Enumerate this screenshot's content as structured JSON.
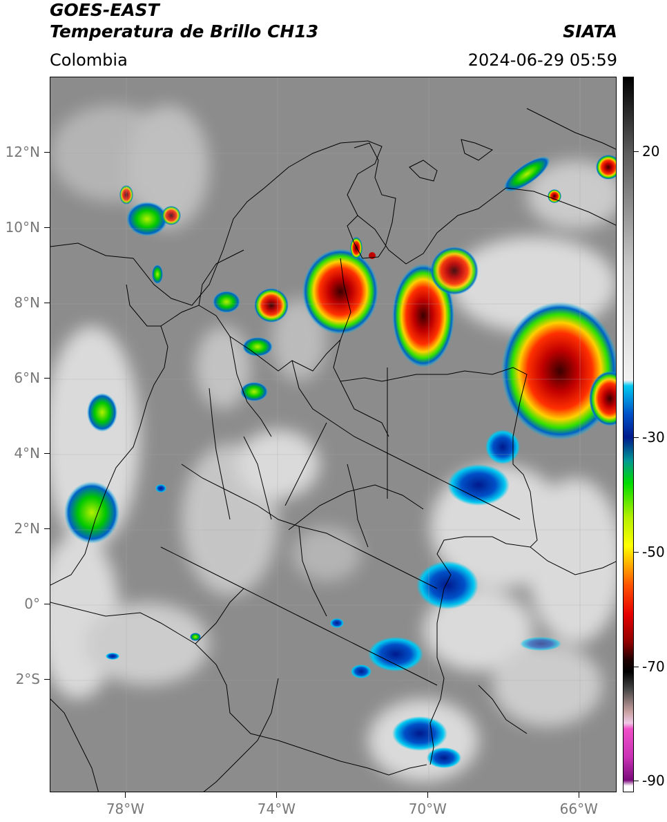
{
  "header": {
    "satellite": "GOES-EAST",
    "product": "Temperatura de Brillo CH13",
    "organization": "SIATA",
    "region": "Colombia",
    "datetime": "2024-06-29 05:59"
  },
  "map": {
    "extent": {
      "lon_min": -80,
      "lon_max": -65,
      "lat_min": -5,
      "lat_max": 14
    },
    "lat_ticks": [
      {
        "lat": 12,
        "label": "12°N"
      },
      {
        "lat": 10,
        "label": "10°N"
      },
      {
        "lat": 8,
        "label": "8°N"
      },
      {
        "lat": 6,
        "label": "6°N"
      },
      {
        "lat": 4,
        "label": "4°N"
      },
      {
        "lat": 2,
        "label": "2°N"
      },
      {
        "lat": 0,
        "label": "0°"
      },
      {
        "lat": -2,
        "label": "2°S"
      }
    ],
    "lon_ticks": [
      {
        "lon": -78,
        "label": "78°W"
      },
      {
        "lon": -74,
        "label": "74°W"
      },
      {
        "lon": -70,
        "label": "70°W"
      },
      {
        "lon": -66,
        "label": "66°W"
      }
    ],
    "colors": {
      "background": "#8c8c8c",
      "cold_cloud": "#e6e6e6",
      "borders": "#000000"
    }
  },
  "colorbar": {
    "vmin": -92,
    "vmax": 33,
    "ticks": [
      {
        "value": 20,
        "label": "20"
      },
      {
        "value": -30,
        "label": "-30"
      },
      {
        "value": -50,
        "label": "-50"
      },
      {
        "value": -70,
        "label": "-70"
      },
      {
        "value": -90,
        "label": "-90"
      }
    ],
    "stops": [
      {
        "value": 33,
        "color": "#000000"
      },
      {
        "value": 20,
        "color": "#5a5a5a"
      },
      {
        "value": 0,
        "color": "#c8c8c8"
      },
      {
        "value": -20,
        "color": "#f2f2f2"
      },
      {
        "value": -21,
        "color": "#00c8f0"
      },
      {
        "value": -26,
        "color": "#0050c8"
      },
      {
        "value": -30,
        "color": "#001a8c"
      },
      {
        "value": -34,
        "color": "#009696"
      },
      {
        "value": -38,
        "color": "#00dc00"
      },
      {
        "value": -44,
        "color": "#b4f000"
      },
      {
        "value": -49,
        "color": "#ffff00"
      },
      {
        "value": -52,
        "color": "#ffb400"
      },
      {
        "value": -56,
        "color": "#ff5000"
      },
      {
        "value": -61,
        "color": "#e60000"
      },
      {
        "value": -66,
        "color": "#8c0000"
      },
      {
        "value": -69,
        "color": "#1e0000"
      },
      {
        "value": -71,
        "color": "#000000"
      },
      {
        "value": -74,
        "color": "#444444"
      },
      {
        "value": -78,
        "color": "#c8a0a0"
      },
      {
        "value": -80,
        "color": "#f0c8e6"
      },
      {
        "value": -81,
        "color": "#f050c8"
      },
      {
        "value": -86,
        "color": "#c832b4"
      },
      {
        "value": -90,
        "color": "#7a0a7a"
      },
      {
        "value": -91,
        "color": "#ffffff"
      },
      {
        "value": -92,
        "color": "#ffffff"
      }
    ]
  }
}
